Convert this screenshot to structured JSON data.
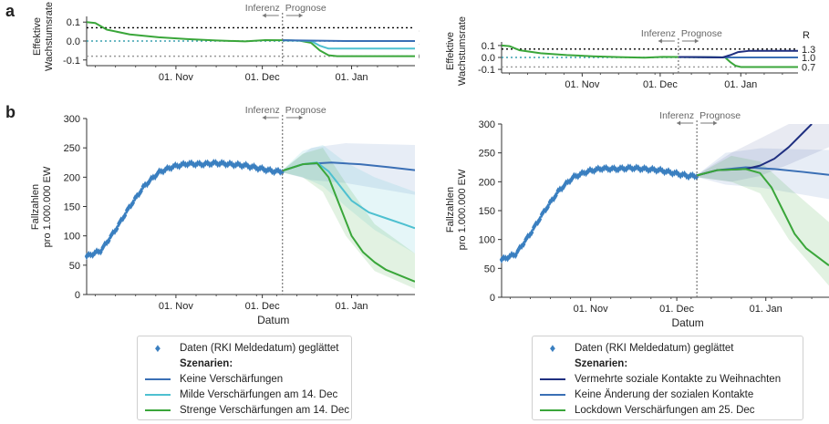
{
  "panel_labels": {
    "a": "a",
    "b": "b"
  },
  "colors": {
    "green": "#3aa63a",
    "cyan": "#4ec0d0",
    "blue": "#3a6fb5",
    "navy": "#1f2f80",
    "data_marker": "#3a7fc0",
    "teal_dotted": "#3aa0b0",
    "gray_dotted": "#999999"
  },
  "common": {
    "inference_label": "Inferenz",
    "forecast_label": "Prognose",
    "r_label": "R",
    "x_label": "Datum",
    "growth_ylabel_line1": "Effektive",
    "growth_ylabel_line2": "Wachstumsrate",
    "cases_ylabel_line1": "Fallzahlen",
    "cases_ylabel_line2": "pro 1.000.000 EW",
    "x_ticks": [
      "01. Nov",
      "01. Dec",
      "01. Jan"
    ],
    "x_tick_days": [
      31,
      61,
      92
    ],
    "x_range_days": [
      0,
      114
    ],
    "inference_day": 68
  },
  "legend_left": {
    "data_label": "Daten (RKI Meldedatum) geglättet",
    "header": "Szenarien:",
    "items": [
      {
        "label": "Keine Verschärfungen",
        "color": "#3a6fb5"
      },
      {
        "label": "Milde Verschärfungen am 14. Dec",
        "color": "#4ec0d0"
      },
      {
        "label": "Strenge Verschärfungen am 14. Dec",
        "color": "#3aa63a"
      }
    ]
  },
  "legend_right": {
    "data_label": "Daten (RKI Meldedatum) geglättet",
    "header": "Szenarien:",
    "items": [
      {
        "label": "Vermehrte soziale Kontakte zu Weihnachten",
        "color": "#1f2f80"
      },
      {
        "label": "Keine Änderung der sozialen Kontakte",
        "color": "#3a6fb5"
      },
      {
        "label": "Lockdown Verschärfungen am 25. Dec",
        "color": "#3aa63a"
      }
    ]
  },
  "chart_data": [
    {
      "id": "a-left",
      "type": "line",
      "ylabel": "Effektive Wachstumsrate",
      "ylim": [
        -0.13,
        0.13
      ],
      "yticks": [
        0.1,
        0.0,
        -0.1
      ],
      "ytick_labels": [
        "0.1",
        "0.0",
        "-0.1"
      ],
      "reference_lines": [
        {
          "y": 0.07,
          "label": "1.3",
          "color": "#000000"
        },
        {
          "y": 0.0,
          "label": "1.0",
          "color": "#3aa0b0"
        },
        {
          "y": -0.08,
          "label": "0.7",
          "color": "#999999"
        }
      ],
      "series": [
        {
          "color": "#3aa63a",
          "width": 2,
          "points": [
            [
              0,
              0.1
            ],
            [
              3,
              0.095
            ],
            [
              7,
              0.06
            ],
            [
              15,
              0.035
            ],
            [
              25,
              0.02
            ],
            [
              35,
              0.01
            ],
            [
              45,
              0.003
            ],
            [
              55,
              -0.002
            ],
            [
              62,
              0.005
            ],
            [
              68,
              0.004
            ],
            [
              74,
              0.002
            ],
            [
              78,
              -0.01
            ],
            [
              81,
              -0.05
            ],
            [
              84,
              -0.075
            ],
            [
              87,
              -0.08
            ],
            [
              114,
              -0.08
            ]
          ]
        },
        {
          "color": "#4ec0d0",
          "width": 2,
          "points": [
            [
              68,
              0.004
            ],
            [
              78,
              0.0
            ],
            [
              81,
              -0.025
            ],
            [
              84,
              -0.04
            ],
            [
              114,
              -0.04
            ]
          ]
        },
        {
          "color": "#3a6fb5",
          "width": 2,
          "points": [
            [
              68,
              0.004
            ],
            [
              90,
              0.0
            ],
            [
              114,
              0.0
            ]
          ]
        }
      ]
    },
    {
      "id": "a-right",
      "type": "line",
      "ylabel": "Effektive Wachstumsrate",
      "ylim": [
        -0.13,
        0.13
      ],
      "yticks": [
        0.1,
        0.0,
        -0.1
      ],
      "ytick_labels": [
        "0.1",
        "0.0",
        "-0.1"
      ],
      "reference_lines": [
        {
          "y": 0.07,
          "label": "1.3",
          "color": "#000000"
        },
        {
          "y": 0.0,
          "label": "1.0",
          "color": "#3aa0b0"
        },
        {
          "y": -0.08,
          "label": "0.7",
          "color": "#999999"
        }
      ],
      "series": [
        {
          "color": "#3aa63a",
          "width": 2,
          "points": [
            [
              0,
              0.1
            ],
            [
              3,
              0.095
            ],
            [
              7,
              0.06
            ],
            [
              15,
              0.035
            ],
            [
              25,
              0.02
            ],
            [
              35,
              0.01
            ],
            [
              45,
              0.003
            ],
            [
              55,
              -0.002
            ],
            [
              62,
              0.005
            ],
            [
              68,
              0.004
            ],
            [
              80,
              0.002
            ],
            [
              86,
              0.0
            ],
            [
              88,
              -0.04
            ],
            [
              90,
              -0.07
            ],
            [
              92,
              -0.08
            ],
            [
              114,
              -0.08
            ]
          ]
        },
        {
          "color": "#3a6fb5",
          "width": 2,
          "points": [
            [
              68,
              0.004
            ],
            [
              90,
              0.0
            ],
            [
              114,
              0.0
            ]
          ]
        },
        {
          "color": "#1f2f80",
          "width": 2,
          "points": [
            [
              68,
              0.004
            ],
            [
              85,
              0.0
            ],
            [
              88,
              0.02
            ],
            [
              91,
              0.045
            ],
            [
              95,
              0.055
            ],
            [
              114,
              0.055
            ]
          ]
        }
      ]
    },
    {
      "id": "b-left",
      "type": "line",
      "xlabel": "Datum",
      "ylabel": "Fallzahlen pro 1.000.000 EW",
      "ylim": [
        0,
        300
      ],
      "yticks": [
        0,
        50,
        100,
        150,
        200,
        250,
        300
      ],
      "observed": {
        "color": "#3a7fc0",
        "points": [
          [
            0,
            65
          ],
          [
            5,
            75
          ],
          [
            10,
            110
          ],
          [
            15,
            150
          ],
          [
            20,
            185
          ],
          [
            25,
            208
          ],
          [
            30,
            218
          ],
          [
            35,
            223
          ],
          [
            40,
            222
          ],
          [
            45,
            224
          ],
          [
            50,
            222
          ],
          [
            55,
            220
          ],
          [
            60,
            215
          ],
          [
            65,
            210
          ],
          [
            68,
            210
          ]
        ]
      },
      "bands": [
        {
          "color": "#3a6fb5",
          "opacity": 0.12,
          "upper": [
            [
              68,
              212
            ],
            [
              78,
              250
            ],
            [
              90,
              258
            ],
            [
              114,
              255
            ]
          ],
          "lower": [
            [
              68,
              208
            ],
            [
              78,
              195
            ],
            [
              90,
              190
            ],
            [
              114,
              170
            ]
          ]
        },
        {
          "color": "#4ec0d0",
          "opacity": 0.15,
          "upper": [
            [
              68,
              212
            ],
            [
              75,
              245
            ],
            [
              82,
              255
            ],
            [
              90,
              225
            ],
            [
              100,
              200
            ],
            [
              114,
              175
            ]
          ],
          "lower": [
            [
              68,
              208
            ],
            [
              75,
              200
            ],
            [
              82,
              185
            ],
            [
              90,
              150
            ],
            [
              100,
              110
            ],
            [
              114,
              70
            ]
          ]
        },
        {
          "color": "#3aa63a",
          "opacity": 0.15,
          "upper": [
            [
              68,
              212
            ],
            [
              75,
              240
            ],
            [
              82,
              250
            ],
            [
              90,
              190
            ],
            [
              100,
              120
            ],
            [
              114,
              70
            ]
          ],
          "lower": [
            [
              68,
              208
            ],
            [
              75,
              200
            ],
            [
              82,
              175
            ],
            [
              90,
              100
            ],
            [
              100,
              40
            ],
            [
              114,
              10
            ]
          ]
        }
      ],
      "series": [
        {
          "name": "Keine Verschärfungen",
          "color": "#3a6fb5",
          "width": 2,
          "points": [
            [
              68,
              211
            ],
            [
              75,
              222
            ],
            [
              85,
              225
            ],
            [
              95,
              222
            ],
            [
              105,
              217
            ],
            [
              114,
              212
            ]
          ]
        },
        {
          "name": "Milde Verschärfungen am 14. Dec",
          "color": "#4ec0d0",
          "width": 2,
          "points": [
            [
              68,
              211
            ],
            [
              75,
              222
            ],
            [
              80,
              225
            ],
            [
              84,
              210
            ],
            [
              88,
              185
            ],
            [
              92,
              160
            ],
            [
              98,
              140
            ],
            [
              104,
              130
            ],
            [
              110,
              120
            ],
            [
              114,
              113
            ]
          ]
        },
        {
          "name": "Strenge Verschärfungen am 14. Dec",
          "color": "#3aa63a",
          "width": 2,
          "points": [
            [
              68,
              211
            ],
            [
              75,
              222
            ],
            [
              80,
              224
            ],
            [
              84,
              200
            ],
            [
              88,
              150
            ],
            [
              92,
              100
            ],
            [
              96,
              72
            ],
            [
              100,
              55
            ],
            [
              104,
              42
            ],
            [
              110,
              30
            ],
            [
              114,
              22
            ]
          ]
        }
      ]
    },
    {
      "id": "b-right",
      "type": "line",
      "xlabel": "Datum",
      "ylabel": "Fallzahlen pro 1.000.000 EW",
      "ylim": [
        0,
        300
      ],
      "yticks": [
        0,
        50,
        100,
        150,
        200,
        250,
        300
      ],
      "observed": {
        "color": "#3a7fc0",
        "points": [
          [
            0,
            65
          ],
          [
            5,
            75
          ],
          [
            10,
            110
          ],
          [
            15,
            150
          ],
          [
            20,
            185
          ],
          [
            25,
            208
          ],
          [
            30,
            218
          ],
          [
            35,
            223
          ],
          [
            40,
            222
          ],
          [
            45,
            224
          ],
          [
            50,
            222
          ],
          [
            55,
            220
          ],
          [
            60,
            215
          ],
          [
            65,
            210
          ],
          [
            68,
            210
          ]
        ]
      },
      "bands": [
        {
          "color": "#3a6fb5",
          "opacity": 0.12,
          "upper": [
            [
              68,
              212
            ],
            [
              78,
              250
            ],
            [
              90,
              258
            ],
            [
              114,
              255
            ]
          ],
          "lower": [
            [
              68,
              208
            ],
            [
              78,
              195
            ],
            [
              90,
              190
            ],
            [
              114,
              170
            ]
          ]
        },
        {
          "color": "#1f2f80",
          "opacity": 0.1,
          "upper": [
            [
              68,
              212
            ],
            [
              80,
              250
            ],
            [
              90,
              275
            ],
            [
              100,
              300
            ],
            [
              114,
              300
            ]
          ],
          "lower": [
            [
              68,
              208
            ],
            [
              80,
              200
            ],
            [
              90,
              210
            ],
            [
              100,
              230
            ],
            [
              114,
              260
            ]
          ]
        },
        {
          "color": "#3aa63a",
          "opacity": 0.15,
          "upper": [
            [
              68,
              212
            ],
            [
              80,
              245
            ],
            [
              90,
              235
            ],
            [
              100,
              190
            ],
            [
              114,
              130
            ]
          ],
          "lower": [
            [
              68,
              208
            ],
            [
              80,
              200
            ],
            [
              90,
              180
            ],
            [
              100,
              100
            ],
            [
              114,
              20
            ]
          ]
        }
      ],
      "series": [
        {
          "name": "Keine Änderung der sozialen Kontakte",
          "color": "#3a6fb5",
          "width": 2,
          "points": [
            [
              68,
              211
            ],
            [
              75,
              220
            ],
            [
              85,
              225
            ],
            [
              95,
              222
            ],
            [
              105,
              217
            ],
            [
              114,
              212
            ]
          ]
        },
        {
          "name": "Vermehrte soziale Kontakte zu Weihnachten",
          "color": "#1f2f80",
          "width": 2,
          "points": [
            [
              68,
              211
            ],
            [
              75,
              220
            ],
            [
              85,
              222
            ],
            [
              90,
              228
            ],
            [
              95,
              240
            ],
            [
              100,
              260
            ],
            [
              105,
              285
            ],
            [
              108,
              300
            ]
          ]
        },
        {
          "name": "Lockdown Verschärfungen am 25. Dec",
          "color": "#3aa63a",
          "width": 2,
          "points": [
            [
              68,
              211
            ],
            [
              75,
              220
            ],
            [
              85,
              222
            ],
            [
              90,
              215
            ],
            [
              94,
              190
            ],
            [
              98,
              150
            ],
            [
              102,
              110
            ],
            [
              106,
              85
            ],
            [
              110,
              70
            ],
            [
              114,
              55
            ]
          ]
        }
      ]
    }
  ]
}
